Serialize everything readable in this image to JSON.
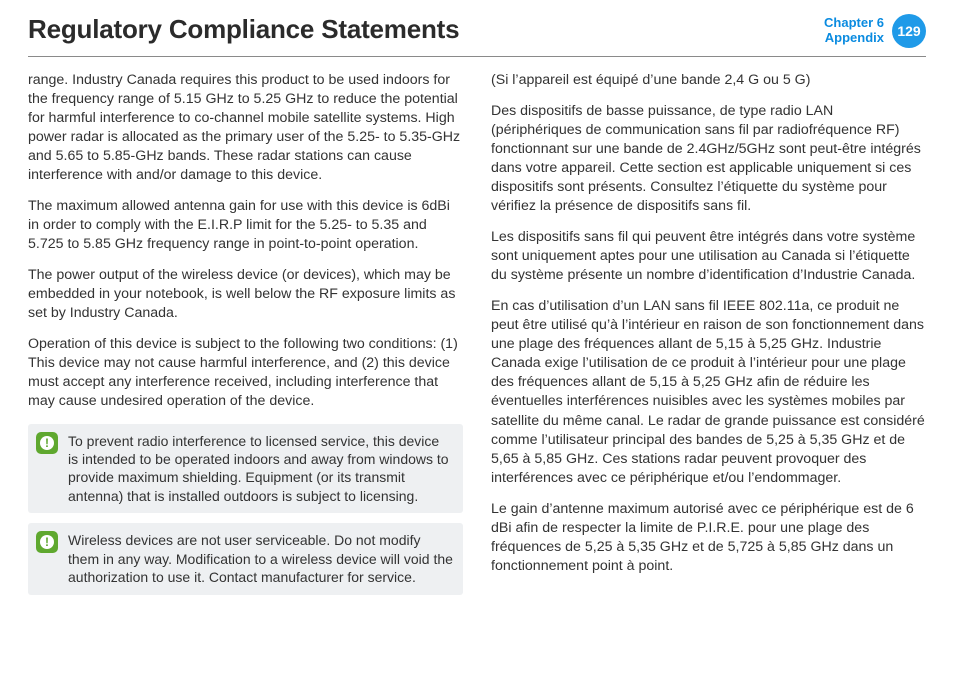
{
  "header": {
    "title": "Regulatory Compliance Statements",
    "chapter_line1": "Chapter 6",
    "chapter_line2": "Appendix",
    "page_number": "129"
  },
  "left": {
    "p1": "range. Industry Canada requires this product to be used indoors for the frequency range of 5.15 GHz to 5.25 GHz to reduce the potential for harmful interference to co-channel mobile satellite systems. High power radar is allocated as the primary user of the 5.25- to 5.35-GHz and 5.65 to 5.85-GHz bands. These radar stations can cause interference with and/or damage to this device.",
    "p2": "The maximum allowed antenna gain for use with this device is 6dBi in order to comply with the E.I.R.P limit for the 5.25- to 5.35 and 5.725 to 5.85 GHz frequency range in point-to-point operation.",
    "p3": "The power output of the wireless device (or devices), which may be embedded in your notebook, is well below the RF exposure limits as set by Industry Canada.",
    "p4": "Operation of this device is subject to the following two conditions: (1) This device may not cause harmful interference, and (2) this device must accept any interference received, including interference that may cause undesired operation of the device.",
    "notice1": "To prevent radio interference to licensed service, this device is intended to be operated indoors and away from windows to provide maximum shielding. Equipment (or its transmit antenna) that is installed outdoors is subject to licensing.",
    "notice2": "Wireless devices are not user serviceable. Do not modify them in any way. Modification to a wireless device will void the authorization to use it. Contact manufacturer for service."
  },
  "right": {
    "p1": "(Si l’appareil est équipé d’une bande 2,4 G ou 5 G)",
    "p2": "Des dispositifs de basse puissance, de type radio LAN (périphériques de communication sans fil par radiofréquence RF) fonctionnant sur une bande de 2.4GHz/5GHz sont peut-être intégrés dans votre appareil. Cette section est applicable uniquement si ces dispositifs sont présents. Consultez l’étiquette du système pour vérifiez la présence de dispositifs sans fil.",
    "p3": "Les dispositifs sans fil qui peuvent être intégrés dans votre système sont uniquement aptes pour une utilisation au Canada si l’étiquette du système présente un nombre d’identification d’Industrie Canada.",
    "p4": "En cas d’utilisation d’un LAN sans fil IEEE 802.11a, ce produit ne peut être utilisé qu’à l’intérieur en raison de son fonctionnement dans une plage des fréquences allant de 5,15 à 5,25 GHz. Industrie Canada exige l’utilisation de ce produit à l’intérieur pour une plage des fréquences allant de 5,15 à 5,25 GHz afin de réduire les éventuelles interférences nuisibles avec les systèmes mobiles par satellite du même canal. Le radar de grande puissance est considéré comme l’utilisateur principal des bandes de 5,25 à 5,35 GHz et de 5,65 à 5,85 GHz. Ces stations radar peuvent provoquer des interférences avec ce périphérique et/ou l’endommager.",
    "p5": "Le gain d’antenne maximum autorisé avec ce périphérique est de 6 dBi afin de respecter la limite de P.I.R.E. pour une plage des fréquences de 5,25 à 5,35 GHz et de 5,725 à 5,85 GHz dans un fonctionnement point à point."
  },
  "colors": {
    "accent": "#1f9ae8",
    "notice_bg": "#eef0f2",
    "notice_icon_bg": "#5fa82f",
    "text": "#333333",
    "title": "#2b2b2b",
    "rule": "#8a8a8a"
  }
}
